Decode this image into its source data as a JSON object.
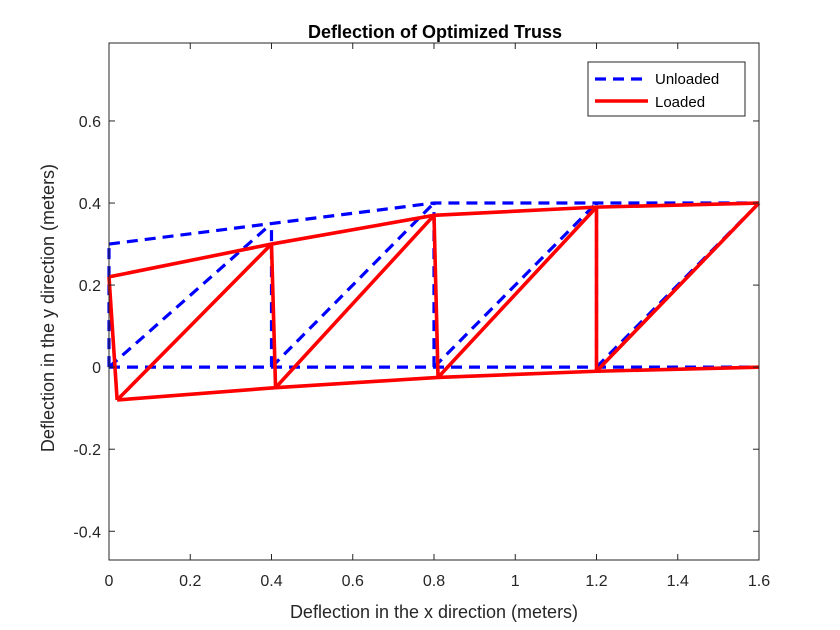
{
  "chart_data": {
    "type": "line",
    "title": "Deflection of Optimized Truss",
    "xlabel": "Deflection in the x direction (meters)",
    "ylabel": "Deflection in the y direction (meters)",
    "xlim": [
      0,
      1.6
    ],
    "ylim": [
      -0.47,
      0.79
    ],
    "xticks": [
      0,
      0.2,
      0.4,
      0.6,
      0.8,
      1,
      1.2,
      1.4,
      1.6
    ],
    "xtick_labels": [
      "0",
      "0.2",
      "0.4",
      "0.6",
      "0.8",
      "1",
      "1.2",
      "1.4",
      "1.6"
    ],
    "yticks": [
      -0.4,
      -0.2,
      0,
      0.2,
      0.4,
      0.6
    ],
    "ytick_labels": [
      "-0.4",
      "-0.2",
      "0",
      "0.2",
      "0.4",
      "0.6"
    ],
    "grid": false,
    "legend_position": "top-right",
    "series": [
      {
        "name": "Unloaded",
        "color": "#0000ff",
        "style": "dashed",
        "segments": [
          [
            [
              0,
              0
            ],
            [
              1.6,
              0
            ]
          ],
          [
            [
              0,
              0.3
            ],
            [
              0.4,
              0.35
            ],
            [
              0.8,
              0.4
            ],
            [
              1.6,
              0.4
            ]
          ],
          [
            [
              0,
              0
            ],
            [
              0,
              0.3
            ]
          ],
          [
            [
              0.4,
              0
            ],
            [
              0.4,
              0.35
            ]
          ],
          [
            [
              0.8,
              0
            ],
            [
              0.8,
              0.4
            ]
          ],
          [
            [
              1.2,
              0
            ],
            [
              1.2,
              0.4
            ]
          ],
          [
            [
              0,
              0
            ],
            [
              0.4,
              0.35
            ]
          ],
          [
            [
              0.4,
              0
            ],
            [
              0.8,
              0.4
            ]
          ],
          [
            [
              0.8,
              0
            ],
            [
              1.2,
              0.4
            ]
          ],
          [
            [
              1.2,
              0
            ],
            [
              1.6,
              0.4
            ]
          ]
        ]
      },
      {
        "name": "Loaded",
        "color": "#ff0000",
        "style": "solid",
        "segments": [
          [
            [
              0.02,
              -0.08
            ],
            [
              0.41,
              -0.05
            ],
            [
              0.81,
              -0.025
            ],
            [
              1.2,
              -0.01
            ],
            [
              1.6,
              0
            ]
          ],
          [
            [
              0,
              0.22
            ],
            [
              0.4,
              0.3
            ],
            [
              0.8,
              0.37
            ],
            [
              1.2,
              0.39
            ],
            [
              1.6,
              0.4
            ]
          ],
          [
            [
              0.02,
              -0.08
            ],
            [
              0,
              0.22
            ]
          ],
          [
            [
              0.41,
              -0.05
            ],
            [
              0.4,
              0.3
            ]
          ],
          [
            [
              0.81,
              -0.025
            ],
            [
              0.8,
              0.37
            ]
          ],
          [
            [
              1.2,
              -0.01
            ],
            [
              1.2,
              0.39
            ]
          ],
          [
            [
              0.02,
              -0.08
            ],
            [
              0.4,
              0.3
            ]
          ],
          [
            [
              0.41,
              -0.05
            ],
            [
              0.8,
              0.37
            ]
          ],
          [
            [
              0.81,
              -0.025
            ],
            [
              1.2,
              0.39
            ]
          ],
          [
            [
              1.2,
              -0.01
            ],
            [
              1.6,
              0.4
            ]
          ]
        ]
      }
    ]
  }
}
